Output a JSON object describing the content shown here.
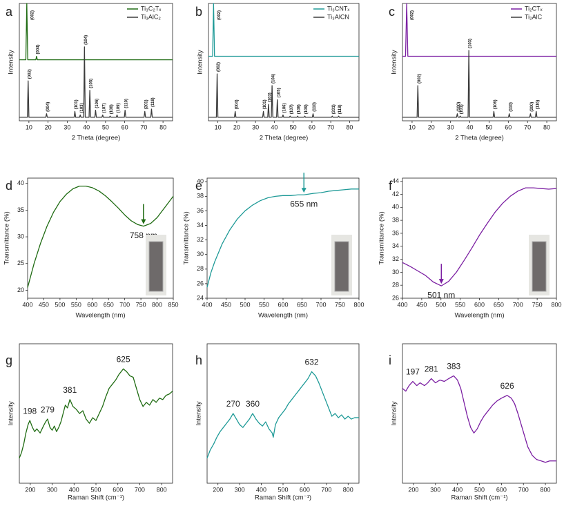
{
  "chart_data": [
    {
      "label": "a",
      "type": "line",
      "xlabel": "2 Theta (degree)",
      "ylabel": "Intensity",
      "xlim": [
        5,
        85
      ],
      "xticks": [
        10,
        20,
        30,
        40,
        50,
        60,
        70,
        80
      ],
      "ylim": [
        0,
        100
      ],
      "legend": "upper right",
      "series": [
        {
          "name": "Ti₃C₂Tₓ",
          "color": "#1f6b12",
          "x": [
            5,
            8.4,
            8.9,
            9.4,
            13.6,
            14,
            14.4,
            85
          ],
          "values": [
            52,
            52,
            100,
            52,
            52,
            55,
            52,
            52
          ],
          "peak_labels": [
            {
              "value": 8.9,
              "label": "(002)"
            },
            {
              "value": 14,
              "label": "(004)"
            }
          ]
        },
        {
          "name": "Ti₃AlC₂",
          "color": "#3c3c3c",
          "x": [
            5,
            9.2,
            9.6,
            10,
            18.8,
            19.2,
            19.6,
            33.6,
            34,
            34.4,
            36.4,
            36.8,
            37.2,
            38.6,
            39,
            39.4,
            41.4,
            41.8,
            42.2,
            44.4,
            44.8,
            45.2,
            48.1,
            48.5,
            48.9,
            52,
            52.4,
            52.8,
            55.6,
            56,
            56.4,
            59.8,
            60.2,
            60.6,
            70.1,
            70.5,
            70.9,
            73.6,
            74,
            74.4,
            85
          ],
          "values": [
            3,
            3,
            34,
            3,
            3,
            6,
            3,
            3,
            8,
            3,
            3,
            5,
            3,
            3,
            63,
            3,
            3,
            26,
            3,
            3,
            9,
            3,
            3,
            5,
            3,
            3,
            4,
            3,
            3,
            5,
            3,
            3,
            9,
            3,
            3,
            8,
            3,
            3,
            10,
            3,
            3
          ],
          "peak_labels": [
            {
              "value": 9.6,
              "label": "(002)"
            },
            {
              "value": 19.2,
              "label": "(004)"
            },
            {
              "value": 34,
              "label": "(101)"
            },
            {
              "value": 36.8,
              "label": "(103)"
            },
            {
              "value": 39,
              "label": "(104)"
            },
            {
              "value": 41.8,
              "label": "(105)"
            },
            {
              "value": 44.8,
              "label": "(106)"
            },
            {
              "value": 48.5,
              "label": "(107)"
            },
            {
              "value": 52.4,
              "label": "(108)"
            },
            {
              "value": 56,
              "label": "(109)"
            },
            {
              "value": 60.2,
              "label": "(110)"
            },
            {
              "value": 70.5,
              "label": "(201)"
            },
            {
              "value": 74,
              "label": "(118)"
            }
          ]
        }
      ]
    },
    {
      "label": "b",
      "type": "line",
      "xlabel": "2 Theta (degree)",
      "ylabel": "Intensity",
      "xlim": [
        5,
        85
      ],
      "xticks": [
        10,
        20,
        30,
        40,
        50,
        60,
        70,
        80
      ],
      "ylim": [
        0,
        100
      ],
      "legend": "upper right",
      "series": [
        {
          "name": "Ti₃CNTₓ",
          "color": "#1e9a97",
          "x": [
            5,
            7.2,
            7.7,
            8.2,
            85
          ],
          "values": [
            55,
            55,
            100,
            55,
            55
          ],
          "peak_labels": [
            {
              "value": 7.7,
              "label": "(002)"
            }
          ]
        },
        {
          "name": "Ti₃AlCN",
          "color": "#3c3c3c",
          "x": [
            5,
            9.2,
            9.6,
            10,
            18.8,
            19.2,
            19.6,
            33.8,
            34.2,
            34.6,
            36.5,
            36.9,
            37.3,
            38.4,
            38.8,
            39.2,
            41.2,
            41.6,
            42,
            44.2,
            44.6,
            45,
            48,
            48.4,
            48.8,
            52,
            52.4,
            52.8,
            55.8,
            56.2,
            56.6,
            60.2,
            60.6,
            61,
            70.4,
            70.8,
            71.2,
            73.8,
            74.2,
            74.6,
            85
          ],
          "values": [
            3,
            3,
            40,
            3,
            3,
            8,
            3,
            3,
            8,
            3,
            3,
            14,
            3,
            3,
            30,
            3,
            3,
            18,
            3,
            3,
            5,
            3,
            3,
            4,
            3,
            3,
            4,
            3,
            3,
            4,
            3,
            3,
            6,
            3,
            3,
            4,
            3,
            3,
            4,
            3,
            3
          ],
          "peak_labels": [
            {
              "value": 9.6,
              "label": "(002)"
            },
            {
              "value": 19.2,
              "label": "(004)"
            },
            {
              "value": 34.2,
              "label": "(101)"
            },
            {
              "value": 36.9,
              "label": "(103)"
            },
            {
              "value": 38.8,
              "label": "(104)"
            },
            {
              "value": 41.6,
              "label": "(105)"
            },
            {
              "value": 44.6,
              "label": "(106)"
            },
            {
              "value": 48.4,
              "label": "(107)"
            },
            {
              "value": 52.4,
              "label": "(108)"
            },
            {
              "value": 56.2,
              "label": "(109)"
            },
            {
              "value": 60.6,
              "label": "(110)"
            },
            {
              "value": 70.8,
              "label": "(201)"
            },
            {
              "value": 74.2,
              "label": "(118)"
            }
          ]
        }
      ]
    },
    {
      "label": "c",
      "type": "line",
      "xlabel": "2 Theta (degree)",
      "ylabel": "Intensity",
      "xlim": [
        5,
        85
      ],
      "xticks": [
        10,
        20,
        30,
        40,
        50,
        60,
        70,
        80
      ],
      "ylim": [
        0,
        100
      ],
      "legend": "upper right",
      "series": [
        {
          "name": "Ti₂CTₓ",
          "color": "#7b1fa2",
          "x": [
            5,
            6.6,
            7.2,
            7.8,
            85
          ],
          "values": [
            55,
            55,
            100,
            55,
            55
          ],
          "peak_labels": [
            {
              "value": 7.2,
              "label": "(002)"
            }
          ]
        },
        {
          "name": "Ti₂AlC",
          "color": "#3c3c3c",
          "x": [
            5,
            12.6,
            13,
            13.4,
            33.1,
            33.5,
            33.9,
            34.6,
            35,
            35.4,
            39.1,
            39.5,
            39.9,
            52.1,
            52.5,
            52.9,
            60.1,
            60.5,
            60.9,
            71.1,
            71.5,
            71.9,
            74.1,
            74.5,
            74.9,
            85
          ],
          "values": [
            3,
            3,
            30,
            3,
            3,
            6,
            3,
            3,
            4,
            3,
            3,
            60,
            3,
            3,
            8,
            3,
            3,
            6,
            3,
            3,
            6,
            3,
            3,
            8,
            3,
            3
          ],
          "peak_labels": [
            {
              "value": 13,
              "label": "(002)"
            },
            {
              "value": 33.5,
              "label": "(100)"
            },
            {
              "value": 35,
              "label": "(101)"
            },
            {
              "value": 39.5,
              "label": "(103)"
            },
            {
              "value": 52.5,
              "label": "(106)"
            },
            {
              "value": 60.5,
              "label": "(110)"
            },
            {
              "value": 71.5,
              "label": "(200)"
            },
            {
              "value": 74.5,
              "label": "(116)"
            }
          ]
        }
      ]
    },
    {
      "label": "d",
      "type": "line",
      "xlabel": "Wavelength (nm)",
      "ylabel": "Transmittance (%)",
      "xlim": [
        400,
        850
      ],
      "xticks": [
        400,
        450,
        500,
        550,
        600,
        650,
        700,
        750,
        800,
        850
      ],
      "ylim": [
        18.5,
        41
      ],
      "yticks": [
        20,
        25,
        30,
        35,
        40
      ],
      "color": "#1f6b12",
      "x": [
        400,
        420,
        440,
        460,
        480,
        500,
        520,
        540,
        560,
        580,
        600,
        620,
        640,
        660,
        680,
        700,
        720,
        740,
        758,
        780,
        800,
        820,
        840,
        850
      ],
      "values": [
        20.5,
        25,
        28.8,
        32,
        34.6,
        36.6,
        38,
        39,
        39.5,
        39.5,
        39.2,
        38.6,
        37.7,
        36.6,
        35.4,
        34.1,
        33,
        32.3,
        32,
        32.5,
        33.6,
        35.2,
        36.8,
        37.6
      ],
      "marker": {
        "value": 758,
        "label": "758 nm"
      }
    },
    {
      "label": "e",
      "type": "line",
      "xlabel": "Wavelength (nm)",
      "ylabel": "Transmittance (%)",
      "xlim": [
        400,
        800
      ],
      "xticks": [
        400,
        450,
        500,
        550,
        600,
        650,
        700,
        750,
        800
      ],
      "ylim": [
        24,
        40.5
      ],
      "yticks": [
        24,
        26,
        28,
        30,
        32,
        34,
        36,
        38,
        40
      ],
      "color": "#1e9a97",
      "x": [
        400,
        410,
        420,
        440,
        460,
        480,
        500,
        520,
        540,
        560,
        580,
        600,
        620,
        640,
        655,
        680,
        700,
        720,
        740,
        760,
        780,
        800
      ],
      "values": [
        25.5,
        27.5,
        29,
        31.5,
        33.4,
        34.9,
        36,
        36.8,
        37.4,
        37.8,
        38,
        38.1,
        38.1,
        38.2,
        38.2,
        38.4,
        38.5,
        38.7,
        38.8,
        38.9,
        39,
        39
      ],
      "marker": {
        "value": 655,
        "label": "655 nm"
      }
    },
    {
      "label": "f",
      "type": "line",
      "xlabel": "Wavelength (nm)",
      "ylabel": "Transmittance (%)",
      "xlim": [
        400,
        800
      ],
      "xticks": [
        400,
        450,
        500,
        550,
        600,
        650,
        700,
        750,
        800
      ],
      "ylim": [
        26,
        44.5
      ],
      "yticks": [
        26,
        28,
        30,
        32,
        34,
        36,
        38,
        40,
        42,
        44
      ],
      "color": "#7b1fa2",
      "x": [
        400,
        420,
        440,
        460,
        480,
        501,
        520,
        540,
        560,
        580,
        600,
        620,
        640,
        660,
        680,
        700,
        720,
        740,
        760,
        780,
        800
      ],
      "values": [
        31.5,
        30.9,
        30.2,
        29.5,
        28.5,
        27.9,
        28.6,
        30,
        31.8,
        33.7,
        35.7,
        37.5,
        39.2,
        40.6,
        41.7,
        42.5,
        43,
        43,
        42.9,
        42.8,
        42.9
      ],
      "marker": {
        "value": 501,
        "label": "501 nm"
      }
    },
    {
      "label": "g",
      "type": "line",
      "xlabel": "Raman Shift (cm⁻¹)",
      "ylabel": "Intensity",
      "xlim": [
        150,
        850
      ],
      "xticks": [
        200,
        300,
        400,
        500,
        600,
        700,
        800
      ],
      "ylim": [
        0,
        100
      ],
      "color": "#1f6b12",
      "x": [
        150,
        160,
        170,
        180,
        190,
        198,
        210,
        220,
        230,
        245,
        260,
        270,
        279,
        290,
        300,
        310,
        320,
        330,
        340,
        350,
        360,
        370,
        381,
        395,
        410,
        425,
        440,
        455,
        470,
        485,
        500,
        515,
        530,
        545,
        560,
        575,
        590,
        605,
        625,
        640,
        655,
        670,
        685,
        700,
        715,
        730,
        745,
        760,
        775,
        790,
        805,
        820,
        835,
        850
      ],
      "values": [
        18,
        22,
        28,
        36,
        42,
        45,
        40,
        37,
        39,
        36,
        41,
        44,
        46,
        40,
        38,
        41,
        37,
        40,
        44,
        50,
        56,
        54,
        60,
        55,
        53,
        50,
        52,
        46,
        43,
        47,
        45,
        50,
        55,
        62,
        68,
        71,
        74,
        78,
        82,
        80,
        77,
        76,
        68,
        60,
        55,
        58,
        56,
        60,
        58,
        61,
        60,
        63,
        64,
        66
      ],
      "peaks": [
        198,
        279,
        381,
        625
      ]
    },
    {
      "label": "h",
      "type": "line",
      "xlabel": "Raman Shift (cm⁻¹)",
      "ylabel": "Intensity",
      "xlim": [
        150,
        850
      ],
      "xticks": [
        200,
        300,
        400,
        500,
        600,
        700,
        800
      ],
      "ylim": [
        0,
        100
      ],
      "color": "#1e9a97",
      "x": [
        150,
        165,
        180,
        195,
        210,
        225,
        240,
        255,
        270,
        285,
        300,
        315,
        330,
        345,
        360,
        375,
        390,
        405,
        420,
        435,
        450,
        455,
        465,
        480,
        495,
        510,
        525,
        540,
        555,
        570,
        585,
        600,
        615,
        632,
        650,
        665,
        680,
        695,
        710,
        725,
        740,
        755,
        770,
        785,
        800,
        815,
        830,
        850
      ],
      "values": [
        18,
        24,
        28,
        33,
        37,
        40,
        43,
        46,
        50,
        46,
        42,
        40,
        43,
        46,
        50,
        46,
        43,
        41,
        44,
        39,
        36,
        33,
        42,
        47,
        50,
        53,
        57,
        60,
        63,
        66,
        69,
        72,
        75,
        80,
        77,
        72,
        66,
        60,
        54,
        48,
        50,
        47,
        49,
        46,
        48,
        46,
        47,
        47
      ],
      "peaks": [
        270,
        360,
        632
      ]
    },
    {
      "label": "i",
      "type": "line",
      "xlabel": "Raman Shift (cm⁻¹)",
      "ylabel": "Intensity",
      "xlim": [
        150,
        850
      ],
      "xticks": [
        200,
        300,
        400,
        500,
        600,
        700,
        800
      ],
      "ylim": [
        0,
        100
      ],
      "color": "#7b1fa2",
      "x": [
        150,
        165,
        180,
        197,
        215,
        230,
        250,
        265,
        281,
        300,
        320,
        340,
        360,
        383,
        400,
        415,
        430,
        445,
        460,
        475,
        490,
        505,
        520,
        540,
        560,
        580,
        600,
        626,
        645,
        660,
        675,
        690,
        705,
        720,
        740,
        760,
        780,
        800,
        820,
        850
      ],
      "values": [
        68,
        66,
        70,
        73,
        70,
        72,
        70,
        72,
        75,
        72,
        74,
        73,
        75,
        77,
        74,
        68,
        58,
        48,
        40,
        36,
        39,
        44,
        48,
        52,
        56,
        59,
        61,
        63,
        61,
        57,
        50,
        42,
        34,
        26,
        20,
        17,
        16,
        15,
        16,
        16
      ],
      "peaks": [
        197,
        281,
        383,
        626
      ]
    }
  ]
}
